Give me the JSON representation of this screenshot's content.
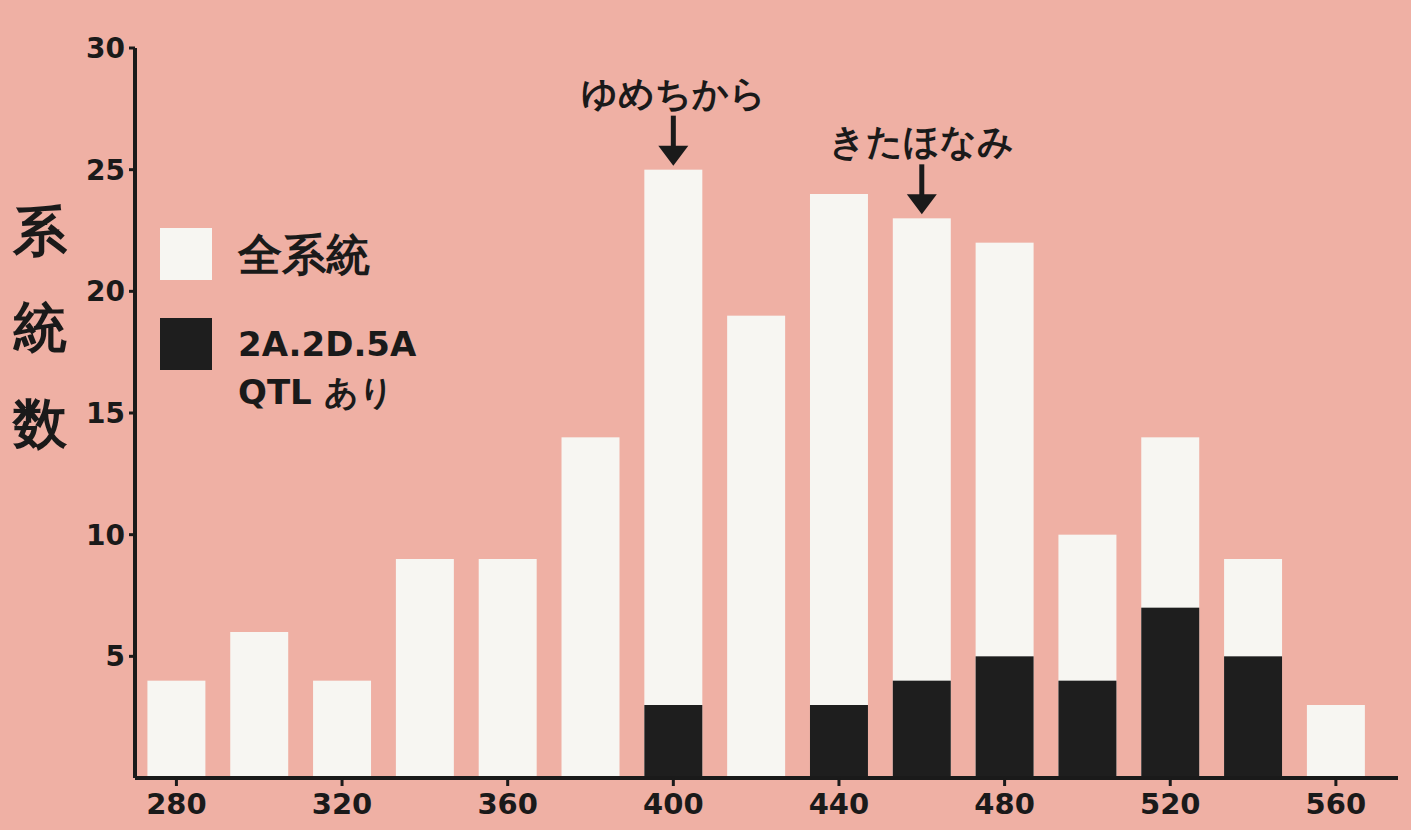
{
  "chart_data": {
    "type": "bar",
    "x": [
      280,
      300,
      320,
      340,
      360,
      380,
      400,
      420,
      440,
      460,
      480,
      500,
      520,
      540,
      560
    ],
    "series": [
      {
        "name": "全系統",
        "color": "#f7f6f2",
        "values": [
          4,
          6,
          4,
          9,
          9,
          14,
          25,
          19,
          24,
          23,
          22,
          10,
          14,
          9,
          3
        ]
      },
      {
        "name": "2A.2D.5A QTL あり",
        "color": "#1e1e1e",
        "values": [
          0,
          0,
          0,
          0,
          0,
          0,
          3,
          0,
          3,
          4,
          5,
          4,
          7,
          5,
          0
        ]
      }
    ],
    "stacked": false,
    "xlim": [
      270,
      575
    ],
    "xticks": [
      280,
      320,
      360,
      400,
      440,
      480,
      520,
      560
    ],
    "ylim": [
      0,
      30
    ],
    "yticks": [
      5,
      10,
      15,
      20,
      25,
      30
    ],
    "ylabel": "系統数",
    "legend": "upper left",
    "annotations": [
      {
        "text": "ゆめちから",
        "x": 400
      },
      {
        "text": "きたほなみ",
        "x": 460
      }
    ]
  }
}
